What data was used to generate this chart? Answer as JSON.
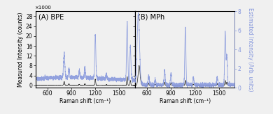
{
  "title_A": "(A) BPE",
  "title_B": "(B) MPh",
  "xlabel": "Raman shift (cm⁻¹)",
  "ylabel_left": "Measured Intensity (counts)",
  "ylabel_right": "Estimated Intensity (Arb. units)",
  "xmin": 450,
  "xmax": 1700,
  "ylim_left": [
    -1,
    30
  ],
  "ylim_right": [
    0,
    8
  ],
  "dark_color": "#222222",
  "light_color": "#8899dd",
  "background_color": "#f0f0f0",
  "multiplier_label": "×1000",
  "yticks_left": [
    0,
    4,
    8,
    12,
    16,
    20,
    24,
    28
  ],
  "yticks_right": [
    0,
    2,
    4,
    6,
    8
  ],
  "xticks": [
    600,
    900,
    1200,
    1500
  ]
}
